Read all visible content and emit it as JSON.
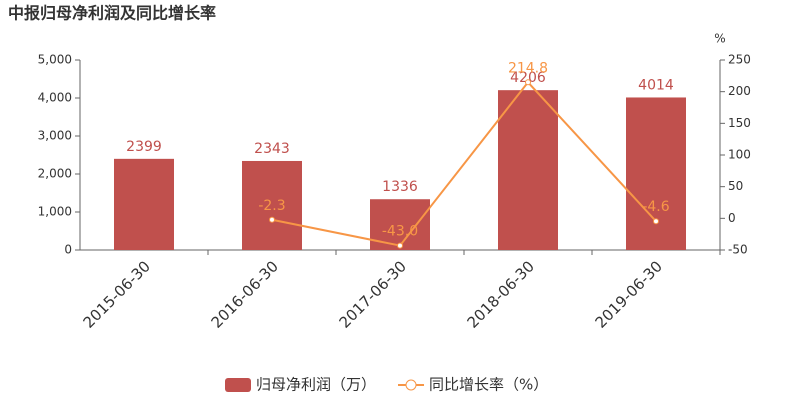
{
  "chart_data": {
    "type": "bar",
    "title": "中报归母净利润及同比增长率",
    "categories": [
      "2015-06-30",
      "2016-06-30",
      "2017-06-30",
      "2018-06-30",
      "2019-06-30"
    ],
    "series": [
      {
        "name": "归母净利润（万）",
        "type": "bar",
        "color": "#c0504d",
        "values": [
          2399,
          2343,
          1336,
          4206,
          4014
        ]
      },
      {
        "name": "同比增长率（%）",
        "type": "line",
        "axis": "y2",
        "color": "#f79646",
        "values": [
          null,
          -2.3,
          -43.0,
          214.8,
          -4.6
        ],
        "value_labels": [
          null,
          "-2.3",
          "-43.0",
          "214.8",
          "-4.6"
        ]
      }
    ],
    "ylim": [
      0,
      5000
    ],
    "yticks": [
      0,
      {
        "value": 1000,
        "label": "1,000"
      },
      {
        "value": 2000,
        "label": "2,000"
      },
      {
        "value": 3000,
        "label": "3,000"
      },
      {
        "value": 4000,
        "label": "4,000"
      },
      {
        "value": 5000,
        "label": "5,000"
      }
    ],
    "y2label": "%",
    "y2lim": [
      -50,
      250
    ],
    "y2ticks": [
      -50,
      0,
      50,
      100,
      150,
      200,
      250
    ],
    "legend": "bottom"
  }
}
